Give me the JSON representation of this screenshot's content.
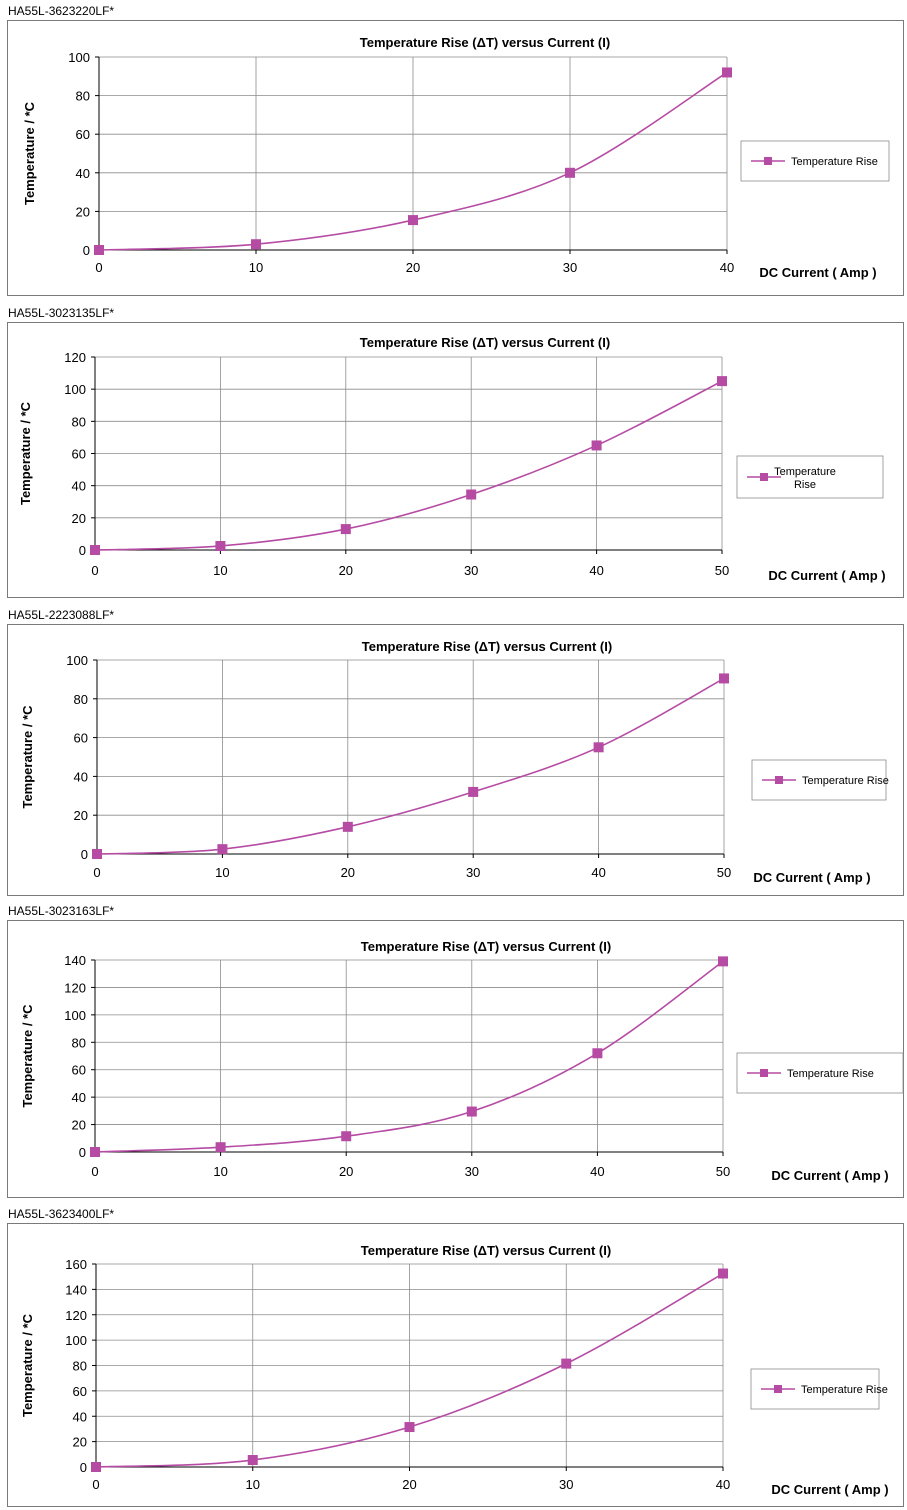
{
  "colors": {
    "series": "#b64ba4",
    "grid": "#8c8c8c",
    "frame": "#7a7a7a"
  },
  "chart_data": [
    {
      "part": "HA55L-3623220LF*",
      "type": "line",
      "title": "Temperature Rise (ΔT) versus Current (I)",
      "xlabel": "DC Current ( Amp )",
      "ylabel": "Temperature / *C",
      "xlim": [
        0,
        40
      ],
      "xticks": [
        0,
        10,
        20,
        30,
        40
      ],
      "ylim": [
        0,
        100
      ],
      "yticks": [
        0,
        20,
        40,
        60,
        80,
        100
      ],
      "series": [
        {
          "name": "Temperature Rise",
          "x": [
            0,
            10,
            20,
            30,
            40
          ],
          "y": [
            0,
            3,
            15.5,
            40,
            92
          ]
        }
      ],
      "grid": true,
      "legend": "right"
    },
    {
      "part": "HA55L-3023135LF*",
      "type": "line",
      "title": "Temperature Rise (ΔT) versus Current (I)",
      "xlabel": "DC Current ( Amp )",
      "ylabel": "Temperature / *C",
      "xlim": [
        0,
        50
      ],
      "xticks": [
        0,
        10,
        20,
        30,
        40,
        50
      ],
      "ylim": [
        0,
        120
      ],
      "yticks": [
        0,
        20,
        40,
        60,
        80,
        100,
        120
      ],
      "series": [
        {
          "name": "Temperature Rise",
          "x": [
            0,
            10,
            20,
            30,
            40,
            50
          ],
          "y": [
            0,
            2.5,
            13,
            34.5,
            65,
            105
          ]
        }
      ],
      "grid": true,
      "legend": "right"
    },
    {
      "part": "HA55L-2223088LF*",
      "type": "line",
      "title": "Temperature Rise (ΔT) versus Current (I)",
      "xlabel": "DC Current ( Amp )",
      "ylabel": "Temperature / *C",
      "xlim": [
        0,
        50
      ],
      "xticks": [
        0,
        10,
        20,
        30,
        40,
        50
      ],
      "ylim": [
        0,
        100
      ],
      "yticks": [
        0,
        20,
        40,
        60,
        80,
        100
      ],
      "series": [
        {
          "name": "Temperature Rise",
          "x": [
            0,
            10,
            20,
            30,
            40,
            50
          ],
          "y": [
            0,
            2.5,
            14,
            32,
            55,
            90.5
          ]
        }
      ],
      "grid": true,
      "legend": "right"
    },
    {
      "part": "HA55L-3023163LF*",
      "type": "line",
      "title": "Temperature Rise (ΔT) versus Current (I)",
      "xlabel": "DC Current ( Amp )",
      "ylabel": "Temperature / *C",
      "xlim": [
        0,
        50
      ],
      "xticks": [
        0,
        10,
        20,
        30,
        40,
        50
      ],
      "ylim": [
        0,
        140
      ],
      "yticks": [
        0,
        20,
        40,
        60,
        80,
        100,
        120,
        140
      ],
      "series": [
        {
          "name": "Temperature Rise",
          "x": [
            0,
            10,
            20,
            30,
            40,
            50
          ],
          "y": [
            0,
            3.5,
            11.5,
            29.5,
            72,
            139
          ]
        }
      ],
      "grid": true,
      "legend": "right"
    },
    {
      "part": "HA55L-3623400LF*",
      "type": "line",
      "title": "Temperature Rise (ΔT) versus Current (I)",
      "xlabel": "DC Current ( Amp )",
      "ylabel": "Temperature / *C",
      "xlim": [
        0,
        40
      ],
      "xticks": [
        0,
        10,
        20,
        30,
        40
      ],
      "ylim": [
        0,
        160
      ],
      "yticks": [
        0,
        20,
        40,
        60,
        80,
        100,
        120,
        140,
        160
      ],
      "series": [
        {
          "name": "Temperature Rise",
          "x": [
            0,
            10,
            20,
            30,
            40
          ],
          "y": [
            0,
            5.5,
            31.5,
            81.5,
            152.5
          ]
        }
      ],
      "grid": true,
      "legend": "right"
    }
  ]
}
